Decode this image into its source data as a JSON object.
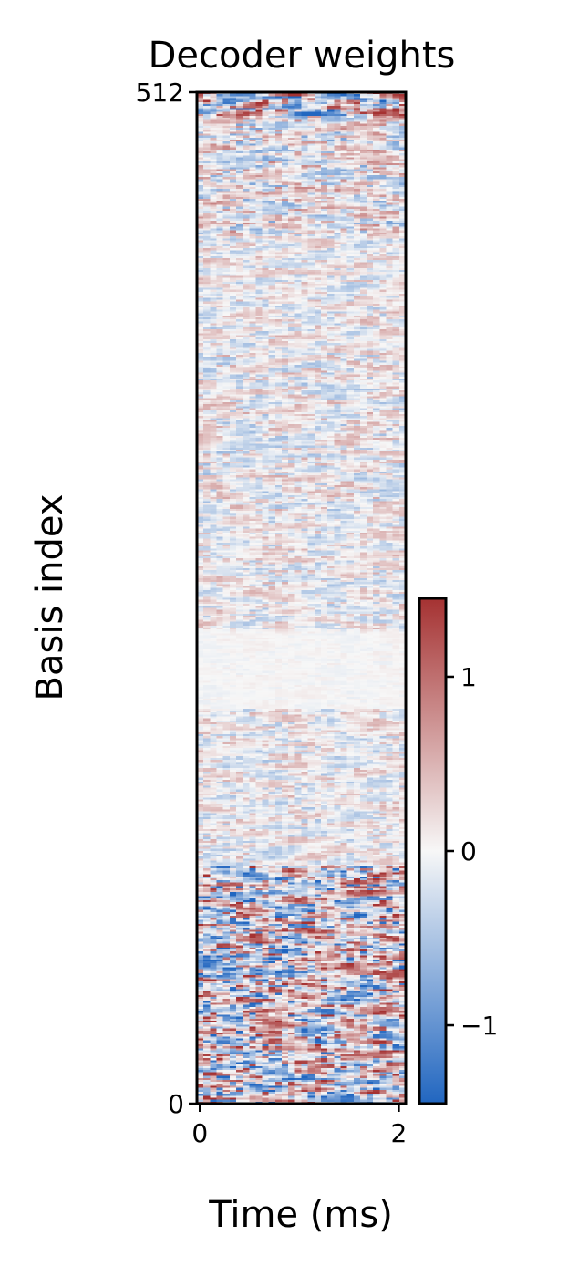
{
  "chart_data": {
    "type": "heatmap",
    "title": "Decoder weights",
    "xlabel": "Time (ms)",
    "ylabel": "Basis index",
    "xlim": [
      -0.03,
      2.07
    ],
    "ylim": [
      0,
      512
    ],
    "x_ticks": [
      "0",
      "2"
    ],
    "x_tick_values": [
      0,
      2
    ],
    "y_ticks": [
      "0",
      "512"
    ],
    "y_tick_values": [
      0,
      512
    ],
    "n_rows": 512,
    "n_cols": 32,
    "colormap": "RdBu_r (vlag-like)",
    "colorbar": {
      "vmin": -1.45,
      "vmax": 1.45,
      "ticks": [
        "−1",
        "0",
        "1"
      ],
      "tick_values": [
        -1,
        0,
        1
      ],
      "colors": {
        "low": "#2166c0",
        "mid": "#f7f7f7",
        "high": "#a53232"
      }
    },
    "grid": false,
    "legend": "none",
    "value_bands": [
      {
        "rows": [
          500,
          512
        ],
        "pattern": "strong negative and positive stripes",
        "amplitude": 1.4
      },
      {
        "rows": [
          440,
          500
        ],
        "pattern": "mixed, negative toward early time",
        "amplitude": 0.7
      },
      {
        "rows": [
          380,
          440
        ],
        "pattern": "positive, strongest at mid time",
        "amplitude": 0.45
      },
      {
        "rows": [
          300,
          380
        ],
        "pattern": "negative/positive alternating",
        "amplitude": 0.5
      },
      {
        "rows": [
          240,
          300
        ],
        "pattern": "negative at mid time, positive at edges",
        "amplitude": 0.45
      },
      {
        "rows": [
          200,
          240
        ],
        "pattern": "near zero",
        "amplitude": 0.08
      },
      {
        "rows": [
          150,
          200
        ],
        "pattern": "positive early, negative late",
        "amplitude": 0.45
      },
      {
        "rows": [
          120,
          150
        ],
        "pattern": "negative",
        "amplitude": 0.45
      },
      {
        "rows": [
          0,
          120
        ],
        "pattern": "strong alternating stripes",
        "amplitude": 1.3
      }
    ]
  }
}
